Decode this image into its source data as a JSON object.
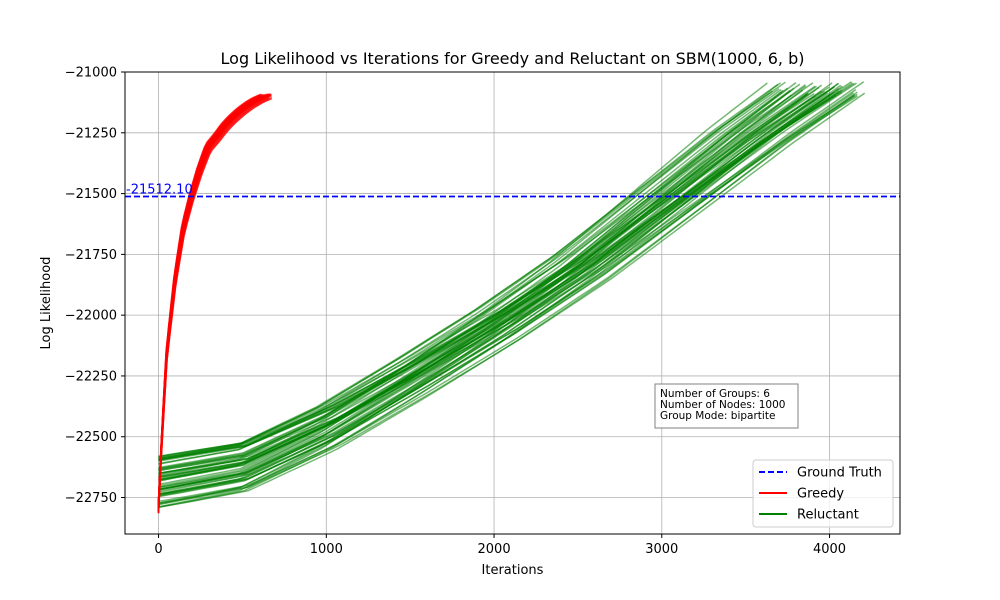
{
  "chart_data": {
    "type": "line",
    "title": "Log Likelihood vs Iterations for Greedy and Reluctant on SBM(1000, 6, b)",
    "xlabel": "Iterations",
    "ylabel": "Log Likelihood",
    "xlim": [
      -200,
      4420
    ],
    "ylim": [
      -22900,
      -21000
    ],
    "xticks": [
      0,
      1000,
      2000,
      3000,
      4000
    ],
    "yticks": [
      -21000,
      -21250,
      -21500,
      -21750,
      -22000,
      -22250,
      -22500,
      -22750
    ],
    "xtick_labels": [
      "0",
      "1000",
      "2000",
      "3000",
      "4000"
    ],
    "ytick_labels": [
      "−21000",
      "−21250",
      "−21500",
      "−21750",
      "−22000",
      "−22250",
      "−22500",
      "−22750"
    ],
    "grid": true,
    "legend_position": "lower-right",
    "ground_truth": {
      "name": "Ground Truth",
      "value": -21512.1,
      "label": "-21512.10",
      "color": "#0000ff",
      "style": "dashed"
    },
    "series": [
      {
        "name": "Greedy",
        "color": "#ff0000",
        "runs": 60,
        "representative": {
          "x": [
            0,
            20,
            50,
            100,
            150,
            200,
            250,
            300,
            350,
            400,
            450,
            500,
            550,
            600,
            650
          ],
          "y": [
            -22790,
            -22500,
            -22150,
            -21850,
            -21640,
            -21510,
            -21400,
            -21310,
            -21270,
            -21225,
            -21190,
            -21160,
            -21135,
            -21115,
            -21100
          ]
        }
      },
      {
        "name": "Reluctant",
        "color": "#008000",
        "runs": 60,
        "representative": {
          "x": [
            0,
            500,
            1000,
            1500,
            2000,
            2500,
            3000,
            3500,
            3900
          ],
          "y": [
            -22680,
            -22620,
            -22460,
            -22260,
            -22050,
            -21820,
            -21560,
            -21300,
            -21110
          ]
        }
      }
    ],
    "annotation": {
      "lines": [
        "Number of Groups: 6",
        "Number of Nodes: 1000",
        "Group Mode: bipartite"
      ]
    }
  }
}
